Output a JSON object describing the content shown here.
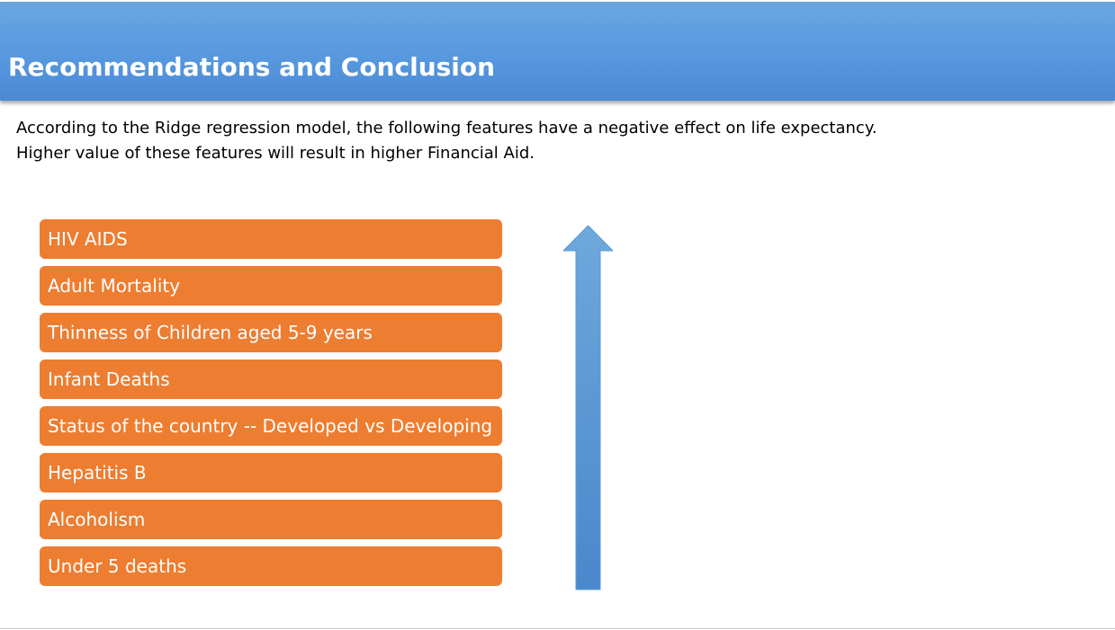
{
  "header": {
    "title": "Recommendations and Conclusion",
    "background_color": "#5b9bd5"
  },
  "intro": {
    "line1": "According to the Ridge regression model, the following features have a negative effect on life expectancy.",
    "line2": "Higher value of these features will result in higher Financial Aid."
  },
  "features": {
    "box_color": "#ed7d31",
    "items": [
      "HIV AIDS",
      "Adult Mortality",
      "Thinness of Children aged 5-9 years",
      "Infant Deaths",
      "Status of the country -- Developed vs Developing",
      "Hepatitis B",
      "Alcoholism",
      "Under 5 deaths"
    ]
  },
  "arrow": {
    "icon": "up-arrow-icon",
    "color_top": "#6fa8dc",
    "color_bottom": "#4a87cc"
  }
}
